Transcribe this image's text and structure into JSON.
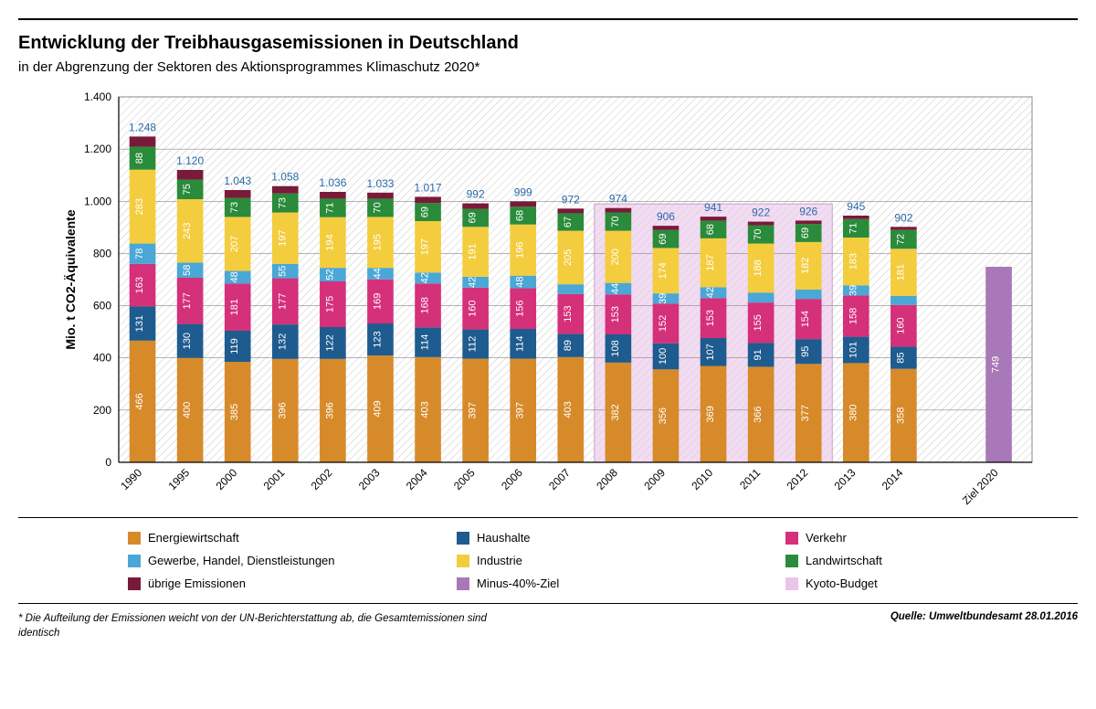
{
  "title": "Entwicklung der Treibhausgasemissionen in Deutschland",
  "subtitle": "in der Abgrenzung der Sektoren des Aktionsprogrammes Klimaschutz 2020*",
  "ylabel": "Mio. t CO2-Äquivalente",
  "ylim": [
    0,
    1400
  ],
  "ytick_step": 200,
  "hatch_stroke": "#c9c9c9",
  "axis_color": "#000000",
  "grid_color": "#888888",
  "text_color": "#000000",
  "total_label_color": "#2a6aa8",
  "kyoto_fill": "#e9c5e8",
  "series": [
    {
      "key": "energie",
      "label": "Energiewirtschaft",
      "color": "#d78a2a"
    },
    {
      "key": "haushalte",
      "label": "Haushalte",
      "color": "#1e5b8f"
    },
    {
      "key": "verkehr",
      "label": "Verkehr",
      "color": "#d5307a"
    },
    {
      "key": "gewerbe",
      "label": "Gewerbe, Handel, Dienstleistungen",
      "color": "#4aa7d6"
    },
    {
      "key": "industrie",
      "label": "Industrie",
      "color": "#f3cd3e"
    },
    {
      "key": "landw",
      "label": "Landwirtschaft",
      "color": "#2a8b3a"
    },
    {
      "key": "uebrige",
      "label": "übrige Emissionen",
      "color": "#7a1a3a"
    }
  ],
  "extra_legend": [
    {
      "key": "ziel",
      "label": "Minus-40%-Ziel",
      "color": "#a978b8"
    },
    {
      "key": "kyoto",
      "label": "Kyoto-Budget",
      "color": "#e9c5e8"
    }
  ],
  "categories": [
    "1990",
    "1995",
    "2000",
    "2001",
    "2002",
    "2003",
    "2004",
    "2005",
    "2006",
    "2007",
    "2008",
    "2009",
    "2010",
    "2011",
    "2012",
    "2013",
    "2014"
  ],
  "totals": [
    1248,
    1120,
    1043,
    1058,
    1036,
    1033,
    1017,
    992,
    999,
    972,
    974,
    906,
    941,
    922,
    926,
    945,
    902
  ],
  "stacks": {
    "energie": [
      466,
      400,
      385,
      396,
      396,
      409,
      403,
      397,
      397,
      403,
      382,
      356,
      369,
      366,
      377,
      380,
      358
    ],
    "haushalte": [
      131,
      130,
      119,
      132,
      122,
      123,
      114,
      112,
      114,
      89,
      108,
      100,
      107,
      91,
      95,
      101,
      85
    ],
    "verkehr": [
      163,
      177,
      181,
      177,
      175,
      169,
      168,
      160,
      156,
      153,
      153,
      152,
      153,
      155,
      154,
      158,
      160
    ],
    "gewerbe": [
      78,
      58,
      48,
      55,
      52,
      44,
      42,
      42,
      48,
      37,
      44,
      39,
      42,
      38,
      36,
      39,
      34
    ],
    "industrie": [
      283,
      243,
      207,
      197,
      194,
      195,
      197,
      191,
      196,
      205,
      200,
      174,
      187,
      188,
      182,
      183,
      181
    ],
    "landw": [
      88,
      75,
      73,
      73,
      71,
      70,
      69,
      69,
      68,
      67,
      70,
      69,
      68,
      70,
      69,
      71,
      72
    ],
    "uebrige": [
      39,
      37,
      30,
      28,
      26,
      23,
      24,
      21,
      20,
      18,
      17,
      16,
      15,
      14,
      13,
      13,
      12
    ]
  },
  "target_label": "Ziel 2020",
  "target_value": 749,
  "target_color": "#a978b8",
  "kyoto_years": [
    "2008",
    "2009",
    "2010",
    "2011",
    "2012"
  ],
  "bar_width_ratio": 0.55,
  "label_fontsize": 11,
  "total_fontsize": 12,
  "title_fontsize": 20,
  "subtitle_fontsize": 15,
  "footnote": "* Die Aufteilung der Emissionen weicht von der UN-Berichterstattung ab, die Gesamtemissionen sind identisch",
  "source": "Quelle: Umweltbundesamt  28.01.2016"
}
